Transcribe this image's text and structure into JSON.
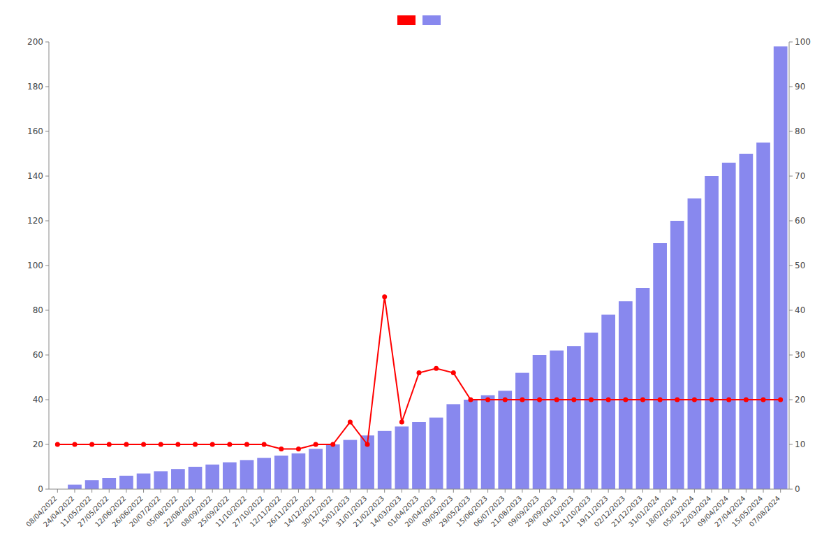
{
  "chart_data": {
    "type": "bar",
    "categories": [
      "08/04/2022",
      "24/04/2022",
      "11/05/2022",
      "27/05/2022",
      "12/06/2022",
      "26/06/2022",
      "20/07/2022",
      "05/08/2022",
      "22/08/2022",
      "08/09/2022",
      "25/09/2022",
      "11/10/2022",
      "27/10/2022",
      "12/11/2022",
      "26/11/2022",
      "14/12/2022",
      "30/12/2022",
      "15/01/2023",
      "31/01/2023",
      "21/02/2023",
      "14/03/2023",
      "01/04/2023",
      "20/04/2023",
      "09/05/2023",
      "29/05/2023",
      "15/06/2023",
      "06/07/2023",
      "21/08/2023",
      "09/09/2023",
      "29/09/2023",
      "04/10/2023",
      "21/10/2023",
      "19/11/2023",
      "02/12/2023",
      "21/12/2023",
      "31/01/2024",
      "18/02/2024",
      "05/03/2024",
      "22/03/2024",
      "09/04/2024",
      "27/04/2024",
      "15/05/2024",
      "07/08/2024"
    ],
    "series": [
      {
        "type": "bar",
        "color": "#8888EE",
        "values": [
          0,
          2,
          4,
          5,
          6,
          7,
          8,
          9,
          10,
          11,
          12,
          13,
          14,
          15,
          16,
          18,
          20,
          22,
          24,
          26,
          28,
          30,
          32,
          38,
          40,
          42,
          44,
          52,
          60,
          62,
          64,
          70,
          78,
          84,
          90,
          110,
          120,
          130,
          140,
          146,
          150,
          155,
          198
        ]
      },
      {
        "type": "line",
        "color": "#FF0000",
        "marker": "circle",
        "axis": "y2",
        "values": [
          10,
          10,
          10,
          10,
          10,
          10,
          10,
          10,
          10,
          10,
          10,
          10,
          10,
          9,
          9,
          10,
          10,
          15,
          10,
          43,
          15,
          26,
          27,
          26,
          20,
          20,
          20,
          20,
          20,
          20,
          20,
          20,
          20,
          20,
          20,
          20,
          20,
          20,
          20,
          20,
          20,
          20,
          20
        ]
      }
    ],
    "ylim": [
      0,
      200
    ],
    "yticks": [
      0,
      20,
      40,
      60,
      80,
      100,
      120,
      140,
      160,
      180,
      200
    ],
    "y2lim": [
      0,
      100
    ],
    "y2ticks": [
      0,
      10,
      20,
      30,
      40,
      50,
      60,
      70,
      80,
      90,
      100
    ],
    "grid": false,
    "legend": "top"
  }
}
